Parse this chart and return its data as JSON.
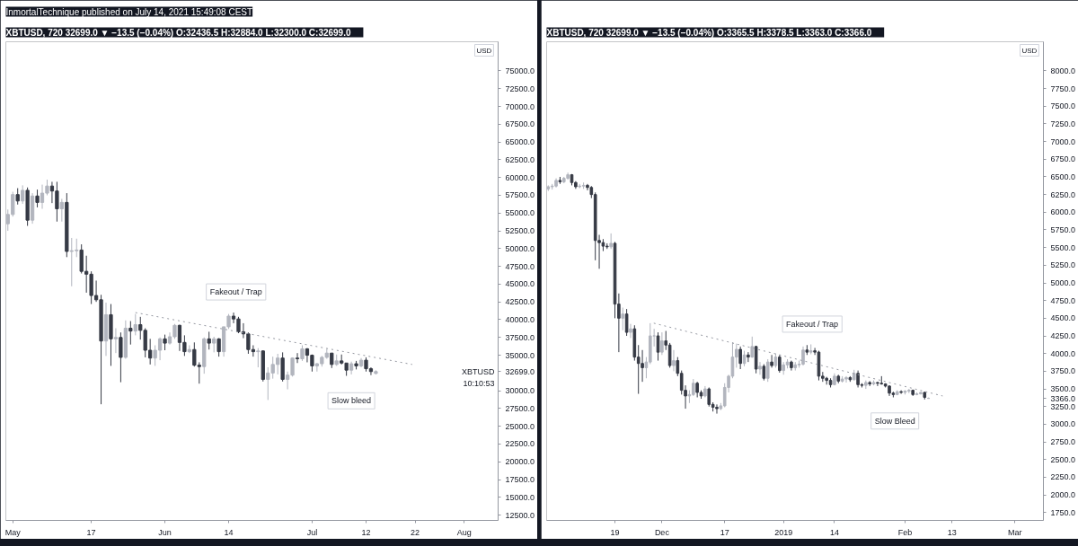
{
  "chart_data": [
    {
      "type": "candlestick",
      "title": "InmortalTechnique published on July 14, 2021 15:49:08 CEST",
      "subtitle": "XBTUSD, 720  32699.0 ▼ −13.5 (−0.04%)  O:32436.5  H:32884.0  L:32300.0  C:32699.0",
      "x": [
        "2021-04-30",
        "2021-05-01",
        "2021-05-02",
        "2021-05-03",
        "2021-05-04",
        "2021-05-05",
        "2021-05-06",
        "2021-05-07",
        "2021-05-08",
        "2021-05-09",
        "2021-05-10",
        "2021-05-11",
        "2021-05-12",
        "2021-05-13",
        "2021-05-14",
        "2021-05-15",
        "2021-05-16",
        "2021-05-17",
        "2021-05-18",
        "2021-05-19",
        "2021-05-20",
        "2021-05-21",
        "2021-05-22",
        "2021-05-23",
        "2021-05-24",
        "2021-05-25",
        "2021-05-26",
        "2021-05-27",
        "2021-05-28",
        "2021-05-29",
        "2021-05-30",
        "2021-05-31",
        "2021-06-01",
        "2021-06-02",
        "2021-06-03",
        "2021-06-04",
        "2021-06-05",
        "2021-06-06",
        "2021-06-07",
        "2021-06-08",
        "2021-06-09",
        "2021-06-10",
        "2021-06-11",
        "2021-06-12",
        "2021-06-13",
        "2021-06-14",
        "2021-06-15",
        "2021-06-16",
        "2021-06-17",
        "2021-06-18",
        "2021-06-19",
        "2021-06-20",
        "2021-06-21",
        "2021-06-22",
        "2021-06-23",
        "2021-06-24",
        "2021-06-25",
        "2021-06-26",
        "2021-06-27",
        "2021-06-28",
        "2021-06-29",
        "2021-06-30",
        "2021-07-01",
        "2021-07-02",
        "2021-07-03",
        "2021-07-04",
        "2021-07-05",
        "2021-07-06",
        "2021-07-07",
        "2021-07-08",
        "2021-07-09",
        "2021-07-10",
        "2021-07-11",
        "2021-07-12",
        "2021-07-13",
        "2021-07-14"
      ],
      "ohlc": [
        [
          53500,
          55500,
          52500,
          54800
        ],
        [
          54800,
          58000,
          54500,
          57600
        ],
        [
          57600,
          58500,
          56200,
          56700
        ],
        [
          56700,
          58900,
          56300,
          58200
        ],
        [
          58200,
          58600,
          53200,
          54000
        ],
        [
          54000,
          57800,
          53500,
          57400
        ],
        [
          57400,
          58300,
          55800,
          56500
        ],
        [
          56500,
          59000,
          55600,
          57800
        ],
        [
          57800,
          59700,
          57500,
          58800
        ],
        [
          58800,
          59400,
          56400,
          58100
        ],
        [
          58100,
          59400,
          53800,
          55600
        ],
        [
          55600,
          57000,
          53800,
          56500
        ],
        [
          56500,
          57800,
          48800,
          49600
        ],
        [
          49600,
          51500,
          44700,
          49700
        ],
        [
          49700,
          51400,
          48800,
          49800
        ],
        [
          49800,
          50600,
          46500,
          46800
        ],
        [
          46800,
          49000,
          43800,
          46400
        ],
        [
          46400,
          46800,
          42200,
          43400
        ],
        [
          43400,
          45500,
          42500,
          42800
        ],
        [
          42800,
          43500,
          28100,
          37000
        ],
        [
          37000,
          42400,
          34900,
          40700
        ],
        [
          40700,
          42200,
          33500,
          37300
        ],
        [
          37300,
          38800,
          35300,
          37500
        ],
        [
          37500,
          38200,
          31200,
          34700
        ],
        [
          34700,
          39900,
          34500,
          38800
        ],
        [
          38800,
          39800,
          36500,
          38400
        ],
        [
          38400,
          40800,
          37800,
          39300
        ],
        [
          39300,
          40400,
          37200,
          38500
        ],
        [
          38500,
          38800,
          34700,
          35700
        ],
        [
          35700,
          37300,
          33700,
          34600
        ],
        [
          34600,
          36400,
          33500,
          35700
        ],
        [
          35700,
          37500,
          34300,
          37300
        ],
        [
          37300,
          37900,
          35700,
          36700
        ],
        [
          36700,
          38200,
          36500,
          37600
        ],
        [
          37600,
          39400,
          37300,
          39200
        ],
        [
          39200,
          39300,
          35600,
          36800
        ],
        [
          36800,
          37800,
          34900,
          35500
        ],
        [
          35500,
          36400,
          35300,
          35800
        ],
        [
          35800,
          36800,
          33400,
          33600
        ],
        [
          33600,
          34000,
          31000,
          33400
        ],
        [
          33400,
          37500,
          32400,
          37300
        ],
        [
          37300,
          38300,
          35800,
          36700
        ],
        [
          36700,
          37600,
          35400,
          37300
        ],
        [
          37300,
          37400,
          34800,
          35500
        ],
        [
          35500,
          39000,
          34800,
          39000
        ],
        [
          39000,
          40800,
          38700,
          40500
        ],
        [
          40500,
          41000,
          39500,
          40100
        ],
        [
          40100,
          40400,
          38100,
          38300
        ],
        [
          38300,
          39500,
          37400,
          38000
        ],
        [
          38000,
          38200,
          35200,
          35800
        ],
        [
          35800,
          36400,
          34800,
          35500
        ],
        [
          35500,
          36000,
          33300,
          35600
        ],
        [
          35600,
          35700,
          31300,
          31600
        ],
        [
          31600,
          33300,
          28700,
          32500
        ],
        [
          32500,
          34800,
          31700,
          33700
        ],
        [
          33700,
          35200,
          32300,
          34600
        ],
        [
          34600,
          35400,
          31300,
          31600
        ],
        [
          31600,
          32700,
          30200,
          32200
        ],
        [
          32200,
          34700,
          32000,
          34600
        ],
        [
          34600,
          35300,
          33900,
          34500
        ],
        [
          34500,
          36400,
          34200,
          35900
        ],
        [
          35900,
          36000,
          34000,
          35000
        ],
        [
          35000,
          35100,
          32700,
          33500
        ],
        [
          33500,
          33900,
          32700,
          33800
        ],
        [
          33800,
          34900,
          33400,
          34700
        ],
        [
          34700,
          35900,
          34500,
          35300
        ],
        [
          35300,
          35300,
          33200,
          33700
        ],
        [
          33700,
          35100,
          33500,
          34200
        ],
        [
          34200,
          35100,
          33700,
          33900
        ],
        [
          33900,
          33900,
          32100,
          32900
        ],
        [
          32900,
          34100,
          32300,
          33800
        ],
        [
          33800,
          34200,
          33000,
          33500
        ],
        [
          33500,
          34600,
          33300,
          34300
        ],
        [
          34300,
          34700,
          32700,
          33100
        ],
        [
          33100,
          33300,
          32200,
          32700
        ],
        [
          32436.5,
          32884.0,
          32300.0,
          32699.0
        ]
      ],
      "series": [
        {
          "type": "line",
          "x": [
            "2021-05-26T00:00",
            "2021-07-21T10:00"
          ],
          "values": [
            41000,
            33700
          ],
          "color": "#9598a1",
          "line_style": "dotted"
        }
      ],
      "annotations": [
        {
          "text": "Fakeout / Trap",
          "x": "2021-06-15T12:00",
          "y": 41000
        },
        {
          "text": "Slow bleed",
          "x": "2021-07-09T00:00",
          "y": 32000
        },
        "USD",
        "XBTUSD",
        "10:10:53"
      ],
      "xlim": [
        "2021-04-29T14:00",
        "2021-08-07T22:00"
      ],
      "xticks": [
        {
          "value": "2021-05-01",
          "label": "May"
        },
        {
          "value": "2021-05-17",
          "label": "17"
        },
        {
          "value": "2021-06-01",
          "label": "Jun"
        },
        {
          "value": "2021-06-14",
          "label": "14"
        },
        {
          "value": "2021-07-01",
          "label": "Jul"
        },
        {
          "value": "2021-07-12",
          "label": "12"
        },
        {
          "value": "2021-07-22",
          "label": "22"
        },
        {
          "value": "2021-08-01",
          "label": "Aug"
        }
      ],
      "ylim": [
        11760,
        79100
      ],
      "yticks": [
        {
          "value": 12500,
          "label": "12500.0"
        },
        {
          "value": 15000,
          "label": "15000.0"
        },
        {
          "value": 17500,
          "label": "17500.0"
        },
        {
          "value": 20000,
          "label": "20000.0"
        },
        {
          "value": 22500,
          "label": "22500.0"
        },
        {
          "value": 25000,
          "label": "25000.0"
        },
        {
          "value": 27500,
          "label": "27500.0"
        },
        {
          "value": 30000,
          "label": "30000.0"
        },
        {
          "value": 32699,
          "label": "32699.0"
        },
        {
          "value": 35000,
          "label": "35000.0"
        },
        {
          "value": 37500,
          "label": "37500.0"
        },
        {
          "value": 40000,
          "label": "40000.0"
        },
        {
          "value": 42500,
          "label": "42500.0"
        },
        {
          "value": 45000,
          "label": "45000.0"
        },
        {
          "value": 47500,
          "label": "47500.0"
        },
        {
          "value": 50000,
          "label": "50000.0"
        },
        {
          "value": 52500,
          "label": "52500.0"
        },
        {
          "value": 55000,
          "label": "55000.0"
        },
        {
          "value": 57500,
          "label": "57500.0"
        },
        {
          "value": 60000,
          "label": "60000.0"
        },
        {
          "value": 62500,
          "label": "62500.0"
        },
        {
          "value": 65000,
          "label": "65000.0"
        },
        {
          "value": 67500,
          "label": "67500.0"
        },
        {
          "value": 70000,
          "label": "70000.0"
        },
        {
          "value": 72500,
          "label": "72500.0"
        },
        {
          "value": 75000,
          "label": "75000.0"
        }
      ]
    },
    {
      "type": "candlestick",
      "subtitle": "XBTUSD, 720  32699.0 ▼ −13.5 (−0.04%)  O:3365.5  H:3378.5  L:3363.0  C:3366.0",
      "x": [
        "2018-11-02",
        "2018-11-03",
        "2018-11-04",
        "2018-11-05",
        "2018-11-06",
        "2018-11-07",
        "2018-11-08",
        "2018-11-09",
        "2018-11-10",
        "2018-11-11",
        "2018-11-12",
        "2018-11-13",
        "2018-11-14",
        "2018-11-15",
        "2018-11-16",
        "2018-11-17",
        "2018-11-18",
        "2018-11-19",
        "2018-11-20",
        "2018-11-21",
        "2018-11-22",
        "2018-11-23",
        "2018-11-24",
        "2018-11-25",
        "2018-11-26",
        "2018-11-27",
        "2018-11-28",
        "2018-11-29",
        "2018-11-30",
        "2018-12-01",
        "2018-12-02",
        "2018-12-03",
        "2018-12-04",
        "2018-12-05",
        "2018-12-06",
        "2018-12-07",
        "2018-12-08",
        "2018-12-09",
        "2018-12-10",
        "2018-12-11",
        "2018-12-12",
        "2018-12-13",
        "2018-12-14",
        "2018-12-15",
        "2018-12-16",
        "2018-12-17",
        "2018-12-18",
        "2018-12-19",
        "2018-12-20",
        "2018-12-21",
        "2018-12-22",
        "2018-12-23",
        "2018-12-24",
        "2018-12-25",
        "2018-12-26",
        "2018-12-27",
        "2018-12-28",
        "2018-12-29",
        "2018-12-30",
        "2018-12-31",
        "2019-01-01",
        "2019-01-02",
        "2019-01-03",
        "2019-01-04",
        "2019-01-05",
        "2019-01-06",
        "2019-01-07",
        "2019-01-08",
        "2019-01-09",
        "2019-01-10",
        "2019-01-11",
        "2019-01-12",
        "2019-01-13",
        "2019-01-14",
        "2019-01-15",
        "2019-01-16",
        "2019-01-17",
        "2019-01-18",
        "2019-01-19",
        "2019-01-20",
        "2019-01-21",
        "2019-01-22",
        "2019-01-23",
        "2019-01-24",
        "2019-01-25",
        "2019-01-26",
        "2019-01-27",
        "2019-01-28",
        "2019-01-29",
        "2019-01-30",
        "2019-01-31",
        "2019-02-01",
        "2019-02-02",
        "2019-02-03",
        "2019-02-04",
        "2019-02-05",
        "2019-02-06",
        "2019-02-07"
      ],
      "ohlc": [
        [
          6330,
          6380,
          6300,
          6360
        ],
        [
          6360,
          6400,
          6320,
          6370
        ],
        [
          6370,
          6480,
          6350,
          6450
        ],
        [
          6450,
          6500,
          6400,
          6430
        ],
        [
          6430,
          6500,
          6410,
          6480
        ],
        [
          6480,
          6560,
          6460,
          6530
        ],
        [
          6530,
          6540,
          6380,
          6420
        ],
        [
          6420,
          6440,
          6330,
          6360
        ],
        [
          6360,
          6400,
          6340,
          6370
        ],
        [
          6370,
          6420,
          6330,
          6380
        ],
        [
          6380,
          6400,
          6310,
          6350
        ],
        [
          6350,
          6370,
          6200,
          6250
        ],
        [
          6250,
          6280,
          5320,
          5600
        ],
        [
          5600,
          5680,
          5200,
          5570
        ],
        [
          5570,
          5620,
          5450,
          5520
        ],
        [
          5520,
          5560,
          5480,
          5510
        ],
        [
          5510,
          5700,
          5480,
          5560
        ],
        [
          5560,
          5580,
          4500,
          4700
        ],
        [
          4700,
          4850,
          4020,
          4500
        ],
        [
          4500,
          4650,
          4330,
          4560
        ],
        [
          4560,
          4630,
          4250,
          4300
        ],
        [
          4300,
          4420,
          4220,
          4350
        ],
        [
          4350,
          4400,
          3900,
          3950
        ],
        [
          3950,
          4120,
          3430,
          3860
        ],
        [
          3860,
          4050,
          3600,
          3800
        ],
        [
          3800,
          3950,
          3650,
          3880
        ],
        [
          3880,
          4430,
          3850,
          4250
        ],
        [
          4250,
          4350,
          4100,
          4250
        ],
        [
          4250,
          4300,
          3900,
          4020
        ],
        [
          4020,
          4300,
          3980,
          4180
        ],
        [
          4180,
          4320,
          4050,
          4120
        ],
        [
          4120,
          4150,
          3800,
          3830
        ],
        [
          3830,
          4050,
          3750,
          3900
        ],
        [
          3900,
          3950,
          3680,
          3720
        ],
        [
          3720,
          3760,
          3420,
          3480
        ],
        [
          3480,
          3550,
          3220,
          3400
        ],
        [
          3400,
          3480,
          3300,
          3420
        ],
        [
          3420,
          3640,
          3400,
          3580
        ],
        [
          3580,
          3600,
          3380,
          3450
        ],
        [
          3450,
          3480,
          3360,
          3400
        ],
        [
          3400,
          3540,
          3380,
          3500
        ],
        [
          3500,
          3520,
          3250,
          3280
        ],
        [
          3280,
          3310,
          3180,
          3240
        ],
        [
          3240,
          3280,
          3150,
          3220
        ],
        [
          3220,
          3300,
          3200,
          3260
        ],
        [
          3260,
          3580,
          3240,
          3520
        ],
        [
          3520,
          3700,
          3450,
          3680
        ],
        [
          3680,
          4160,
          3650,
          3950
        ],
        [
          3950,
          4140,
          3800,
          4060
        ],
        [
          4060,
          4100,
          3780,
          3860
        ],
        [
          3860,
          4040,
          3820,
          3980
        ],
        [
          3980,
          4020,
          3880,
          3950
        ],
        [
          3950,
          4240,
          3940,
          4100
        ],
        [
          4100,
          4110,
          3720,
          3780
        ],
        [
          3780,
          3880,
          3700,
          3820
        ],
        [
          3820,
          3850,
          3620,
          3650
        ],
        [
          3650,
          3920,
          3600,
          3880
        ],
        [
          3880,
          3980,
          3800,
          3830
        ],
        [
          3830,
          4000,
          3800,
          3950
        ],
        [
          3950,
          3980,
          3730,
          3760
        ],
        [
          3760,
          3880,
          3700,
          3840
        ],
        [
          3840,
          3920,
          3790,
          3880
        ],
        [
          3880,
          3900,
          3760,
          3800
        ],
        [
          3800,
          3880,
          3760,
          3840
        ],
        [
          3840,
          3900,
          3800,
          3850
        ],
        [
          3850,
          4100,
          3830,
          4050
        ],
        [
          4050,
          4120,
          3980,
          4020
        ],
        [
          4020,
          4130,
          3990,
          4040
        ],
        [
          4040,
          4080,
          3980,
          4020
        ],
        [
          4020,
          4040,
          3620,
          3680
        ],
        [
          3680,
          3740,
          3600,
          3650
        ],
        [
          3650,
          3670,
          3560,
          3620
        ],
        [
          3620,
          3650,
          3520,
          3560
        ],
        [
          3560,
          3720,
          3550,
          3680
        ],
        [
          3680,
          3700,
          3580,
          3610
        ],
        [
          3610,
          3680,
          3590,
          3640
        ],
        [
          3640,
          3680,
          3590,
          3660
        ],
        [
          3660,
          3680,
          3600,
          3630
        ],
        [
          3630,
          3770,
          3620,
          3720
        ],
        [
          3720,
          3760,
          3520,
          3560
        ],
        [
          3560,
          3580,
          3520,
          3550
        ],
        [
          3550,
          3620,
          3500,
          3590
        ],
        [
          3590,
          3610,
          3540,
          3570
        ],
        [
          3570,
          3620,
          3550,
          3590
        ],
        [
          3590,
          3600,
          3540,
          3580
        ],
        [
          3580,
          3680,
          3560,
          3570
        ],
        [
          3570,
          3580,
          3520,
          3540
        ],
        [
          3540,
          3550,
          3400,
          3440
        ],
        [
          3440,
          3460,
          3380,
          3420
        ],
        [
          3420,
          3480,
          3410,
          3460
        ],
        [
          3460,
          3480,
          3430,
          3450
        ],
        [
          3450,
          3480,
          3420,
          3470
        ],
        [
          3470,
          3500,
          3440,
          3480
        ],
        [
          3480,
          3490,
          3400,
          3420
        ],
        [
          3420,
          3450,
          3410,
          3430
        ],
        [
          3430,
          3460,
          3420,
          3450
        ],
        [
          3450,
          3460,
          3350,
          3380
        ],
        [
          3365.5,
          3378.5,
          3363.0,
          3366.0
        ]
      ],
      "series": [
        {
          "type": "line",
          "x": [
            "2018-11-28T22:00",
            "2019-02-10T14:00"
          ],
          "values": [
            4430,
            3400
          ],
          "color": "#9598a1",
          "line_style": "dotted"
        }
      ],
      "annotations": [
        {
          "text": "Fakeout / Trap",
          "x": "2019-01-08T08:00",
          "y": 4124
        },
        {
          "text": "Slow Bleed",
          "x": "2019-01-29T10:00",
          "y": 3389
        },
        "USD"
      ],
      "xlim": [
        "2018-11-01T14:00",
        "2019-03-08T07:00"
      ],
      "xticks": [
        {
          "value": "2018-11-19",
          "label": "19"
        },
        {
          "value": "2018-12-01",
          "label": "Dec"
        },
        {
          "value": "2018-12-17",
          "label": "17"
        },
        {
          "value": "2019-01-01",
          "label": "2019"
        },
        {
          "value": "2019-01-14",
          "label": "14"
        },
        {
          "value": "2019-02-01",
          "label": "Feb"
        },
        {
          "value": "2019-02-13",
          "label": "13"
        },
        {
          "value": "2019-03-01",
          "label": "Mar"
        }
      ],
      "ylim": [
        1639,
        8412
      ],
      "yticks": [
        {
          "value": 1750,
          "label": "1750.0"
        },
        {
          "value": 2000,
          "label": "2000.0"
        },
        {
          "value": 2250,
          "label": "2250.0"
        },
        {
          "value": 2500,
          "label": "2500.0"
        },
        {
          "value": 2750,
          "label": "2750.0"
        },
        {
          "value": 3000,
          "label": "3000.0"
        },
        {
          "value": 3250,
          "label": "3250.0"
        },
        {
          "value": 3366,
          "label": "3366.0"
        },
        {
          "value": 3500,
          "label": "3500.0"
        },
        {
          "value": 3750,
          "label": "3750.0"
        },
        {
          "value": 4000,
          "label": "4000.0"
        },
        {
          "value": 4250,
          "label": "4250.0"
        },
        {
          "value": 4500,
          "label": "4500.0"
        },
        {
          "value": 4750,
          "label": "4750.0"
        },
        {
          "value": 5000,
          "label": "5000.0"
        },
        {
          "value": 5250,
          "label": "5250.0"
        },
        {
          "value": 5500,
          "label": "5500.0"
        },
        {
          "value": 5750,
          "label": "5750.0"
        },
        {
          "value": 6000,
          "label": "6000.0"
        },
        {
          "value": 6250,
          "label": "6250.0"
        },
        {
          "value": 6500,
          "label": "6500.0"
        },
        {
          "value": 6750,
          "label": "6750.0"
        },
        {
          "value": 7000,
          "label": "7000.0"
        },
        {
          "value": 7250,
          "label": "7250.0"
        },
        {
          "value": 7500,
          "label": "7500.0"
        },
        {
          "value": 7750,
          "label": "7750.0"
        },
        {
          "value": 8000,
          "label": "8000.0"
        }
      ]
    }
  ]
}
